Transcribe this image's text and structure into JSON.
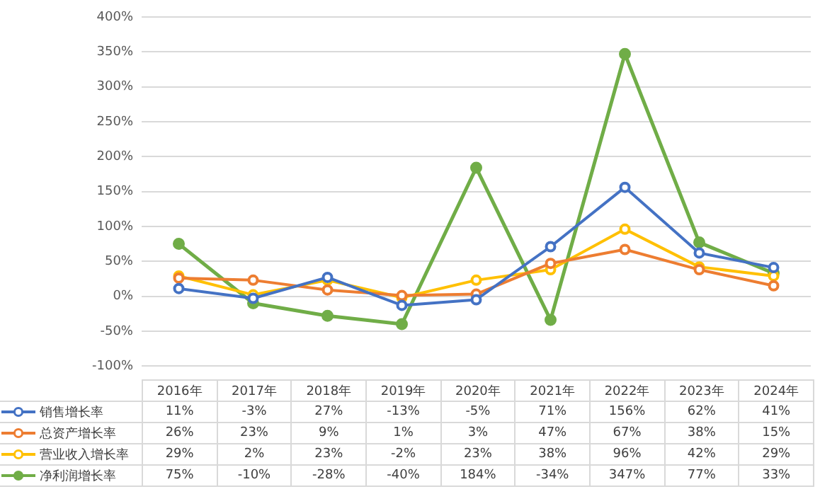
{
  "chart_data": {
    "type": "line",
    "categories": [
      "2016年",
      "2017年",
      "2018年",
      "2019年",
      "2020年",
      "2021年",
      "2022年",
      "2023年",
      "2024年"
    ],
    "series": [
      {
        "name": "销售增长率",
        "color": "#4472c4",
        "values": [
          11,
          -3,
          27,
          -13,
          -5,
          71,
          156,
          62,
          41
        ],
        "value_labels": [
          "11%",
          "-3%",
          "27%",
          "-13%",
          "-5%",
          "71%",
          "156%",
          "62%",
          "41%"
        ]
      },
      {
        "name": "总资产增长率",
        "color": "#ed7d31",
        "values": [
          26,
          23,
          9,
          1,
          3,
          47,
          67,
          38,
          15
        ],
        "value_labels": [
          "26%",
          "23%",
          "9%",
          "1%",
          "3%",
          "47%",
          "67%",
          "38%",
          "15%"
        ]
      },
      {
        "name": "营业收入增长率",
        "color": "#ffc000",
        "values": [
          29,
          2,
          23,
          -2,
          23,
          38,
          96,
          42,
          29
        ],
        "value_labels": [
          "29%",
          "2%",
          "23%",
          "-2%",
          "23%",
          "38%",
          "96%",
          "42%",
          "29%"
        ]
      },
      {
        "name": "净利润增长率",
        "color": "#70ad47",
        "values": [
          75,
          -10,
          -28,
          -40,
          184,
          -34,
          347,
          77,
          33
        ],
        "value_labels": [
          "75%",
          "-10%",
          "-28%",
          "-40%",
          "184%",
          "-34%",
          "347%",
          "77%",
          "33%"
        ]
      }
    ],
    "ylim": [
      -100,
      400
    ],
    "yticks": [
      {
        "value": -100,
        "label": "-100%"
      },
      {
        "value": -50,
        "label": "-50%"
      },
      {
        "value": 0,
        "label": "0%"
      },
      {
        "value": 50,
        "label": "50%"
      },
      {
        "value": 100,
        "label": "100%"
      },
      {
        "value": 150,
        "label": "150%"
      },
      {
        "value": 200,
        "label": "200%"
      },
      {
        "value": 250,
        "label": "250%"
      },
      {
        "value": 300,
        "label": "300%"
      },
      {
        "value": 350,
        "label": "350%"
      },
      {
        "value": 400,
        "label": "400%"
      }
    ],
    "grid": "y",
    "legend": "bottom",
    "marker": "circle",
    "line_style": "solid"
  }
}
